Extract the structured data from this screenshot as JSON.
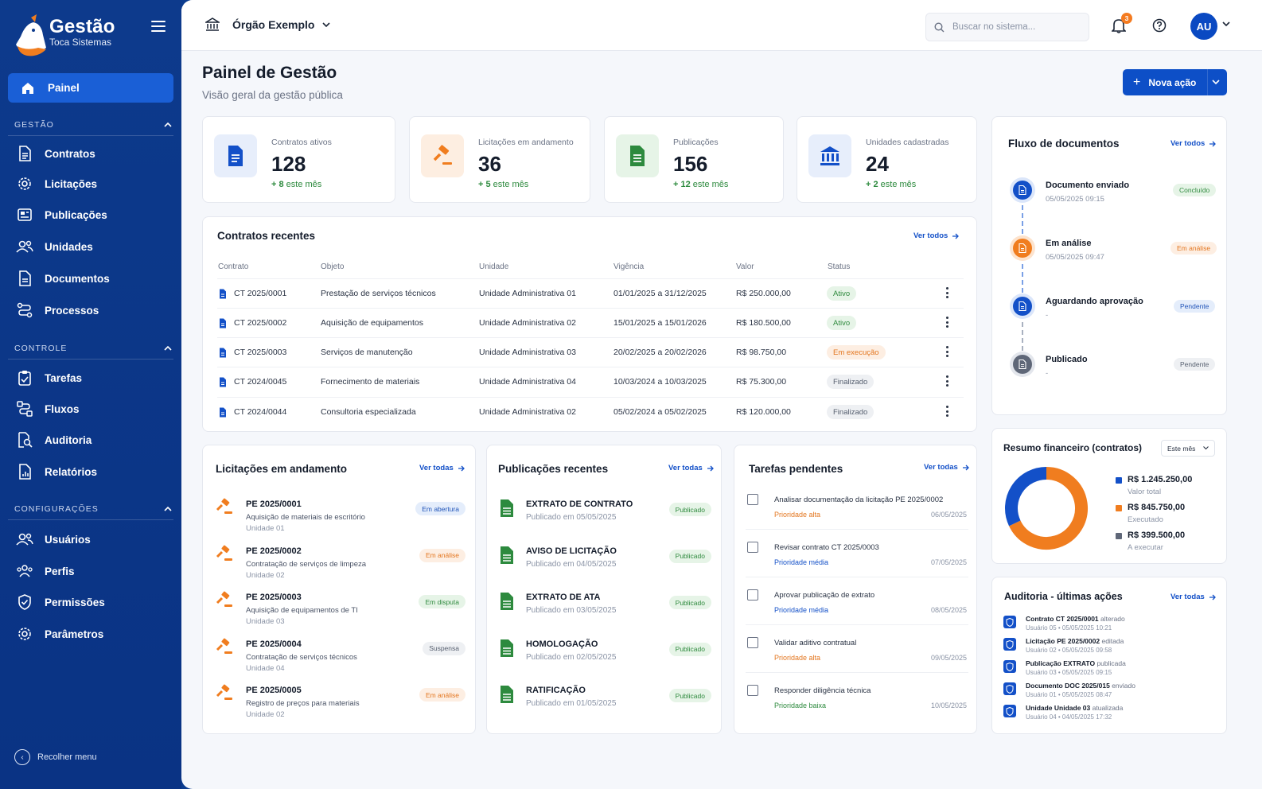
{
  "brand": {
    "title": "Gestão",
    "subtitle": "Toca Sistemas"
  },
  "sidebar": {
    "active": {
      "label": "Painel",
      "icon": "home-icon"
    },
    "sections": [
      {
        "label": "GESTÃO",
        "items": [
          {
            "label": "Contratos",
            "icon": "document-icon"
          },
          {
            "label": "Licitações",
            "icon": "gear-icon"
          },
          {
            "label": "Publicações",
            "icon": "newspaper-icon"
          },
          {
            "label": "Unidades",
            "icon": "users-icon"
          },
          {
            "label": "Documentos",
            "icon": "file-icon"
          },
          {
            "label": "Processos",
            "icon": "process-icon"
          }
        ]
      },
      {
        "label": "CONTROLE",
        "items": [
          {
            "label": "Tarefas",
            "icon": "clipboard-check-icon"
          },
          {
            "label": "Fluxos",
            "icon": "flow-icon"
          },
          {
            "label": "Auditoria",
            "icon": "audit-search-icon"
          },
          {
            "label": "Relatórios",
            "icon": "report-icon"
          }
        ]
      },
      {
        "label": "CONFIGURAÇÕES",
        "items": [
          {
            "label": "Usuários",
            "icon": "users-icon"
          },
          {
            "label": "Perfis",
            "icon": "profiles-icon"
          },
          {
            "label": "Permissões",
            "icon": "shield-check-icon"
          },
          {
            "label": "Parâmetros",
            "icon": "gear-icon"
          }
        ]
      }
    ],
    "collapse_label": "Recolher menu"
  },
  "topbar": {
    "org": "Órgão Exemplo",
    "search_placeholder": "Buscar no sistema...",
    "notifications": "3",
    "avatar": "AU"
  },
  "page": {
    "title": "Painel de Gestão",
    "subtitle": "Visão geral da gestão pública",
    "new_action": "Nova ação"
  },
  "stats": [
    {
      "label": "Contratos ativos",
      "value": "128",
      "delta_num": "+ 8",
      "delta_text": "este mês",
      "icon": "document-icon",
      "color": "#1350c8",
      "bg": "#e7eefb"
    },
    {
      "label": "Licitações em andamento",
      "value": "36",
      "delta_num": "+ 5",
      "delta_text": "este mês",
      "icon": "gavel-icon",
      "color": "#f07d1f",
      "bg": "#fdeee1"
    },
    {
      "label": "Publicações",
      "value": "156",
      "delta_num": "+ 12",
      "delta_text": "este mês",
      "icon": "sheet-icon",
      "color": "#2d8a3e",
      "bg": "#e6f4e7"
    },
    {
      "label": "Unidades cadastradas",
      "value": "24",
      "delta_num": "+ 2",
      "delta_text": "este mês",
      "icon": "bank-icon",
      "color": "#1350c8",
      "bg": "#e7eefb"
    }
  ],
  "contracts": {
    "title": "Contratos recentes",
    "see_all": "Ver todos",
    "columns": [
      "Contrato",
      "Objeto",
      "Unidade",
      "Vigência",
      "Valor",
      "Status"
    ],
    "rows": [
      {
        "id": "CT 2025/0001",
        "object": "Prestação de serviços técnicos",
        "unit": "Unidade Administrativa 01",
        "period": "01/01/2025 a 31/12/2025",
        "value": "R$ 250.000,00",
        "status": "Ativo",
        "tone": "green"
      },
      {
        "id": "CT 2025/0002",
        "object": "Aquisição de equipamentos",
        "unit": "Unidade Administrativa 02",
        "period": "15/01/2025 a 15/01/2026",
        "value": "R$ 180.500,00",
        "status": "Ativo",
        "tone": "green"
      },
      {
        "id": "CT 2025/0003",
        "object": "Serviços de manutenção",
        "unit": "Unidade Administrativa 03",
        "period": "20/02/2025 a 20/02/2026",
        "value": "R$ 98.750,00",
        "status": "Em execução",
        "tone": "orange"
      },
      {
        "id": "CT 2024/0045",
        "object": "Fornecimento de materiais",
        "unit": "Unidade Administrativa 04",
        "period": "10/03/2024 a 10/03/2025",
        "value": "R$ 75.300,00",
        "status": "Finalizado",
        "tone": "gray"
      },
      {
        "id": "CT 2024/0044",
        "object": "Consultoria especializada",
        "unit": "Unidade Administrativa 02",
        "period": "05/02/2024 a 05/02/2025",
        "value": "R$ 120.000,00",
        "status": "Finalizado",
        "tone": "gray"
      }
    ]
  },
  "flow": {
    "title": "Fluxo de documentos",
    "see_all": "Ver todos",
    "steps": [
      {
        "name": "Documento enviado",
        "date": "05/05/2025 09:15",
        "status": "Concluído",
        "tone": "green",
        "color": "#1350c8"
      },
      {
        "name": "Em análise",
        "date": "05/05/2025 09:47",
        "status": "Em análise",
        "tone": "orange",
        "color": "#f07d1f"
      },
      {
        "name": "Aguardando aprovação",
        "date": "-",
        "status": "Pendente",
        "tone": "blue",
        "color": "#1350c8"
      },
      {
        "name": "Publicado",
        "date": "-",
        "status": "Pendente",
        "tone": "gray",
        "color": "#5f6778"
      }
    ]
  },
  "biddings": {
    "title": "Licitações em andamento",
    "see_all": "Ver todas",
    "items": [
      {
        "id": "PE 2025/0001",
        "desc": "Aquisição de materiais de escritório",
        "unit": "Unidade 01",
        "status": "Em abertura",
        "tone": "blue"
      },
      {
        "id": "PE 2025/0002",
        "desc": "Contratação de serviços de limpeza",
        "unit": "Unidade 02",
        "status": "Em análise",
        "tone": "orange"
      },
      {
        "id": "PE 2025/0003",
        "desc": "Aquisição de equipamentos de TI",
        "unit": "Unidade 03",
        "status": "Em disputa",
        "tone": "green"
      },
      {
        "id": "PE 2025/0004",
        "desc": "Contratação de serviços técnicos",
        "unit": "Unidade 04",
        "status": "Suspensa",
        "tone": "gray"
      },
      {
        "id": "PE 2025/0005",
        "desc": "Registro de preços para materiais",
        "unit": "Unidade 02",
        "status": "Em análise",
        "tone": "orange"
      }
    ]
  },
  "publications": {
    "title": "Publicações recentes",
    "see_all": "Ver todas",
    "items": [
      {
        "title": "EXTRATO DE CONTRATO",
        "date": "Publicado em 05/05/2025",
        "status": "Publicado"
      },
      {
        "title": "AVISO DE LICITAÇÃO",
        "date": "Publicado em 04/05/2025",
        "status": "Publicado"
      },
      {
        "title": "EXTRATO DE ATA",
        "date": "Publicado em 03/05/2025",
        "status": "Publicado"
      },
      {
        "title": "HOMOLOGAÇÃO",
        "date": "Publicado em 02/05/2025",
        "status": "Publicado"
      },
      {
        "title": "RATIFICAÇÃO",
        "date": "Publicado em 01/05/2025",
        "status": "Publicado"
      }
    ]
  },
  "tasks": {
    "title": "Tarefas pendentes",
    "see_all": "Ver todas",
    "items": [
      {
        "title": "Analisar documentação da licitação PE 2025/0002",
        "priority": "Prioridade alta",
        "color": "#e3761f",
        "date": "06/05/2025"
      },
      {
        "title": "Revisar contrato CT 2025/0003",
        "priority": "Prioridade média",
        "color": "#1350c8",
        "date": "07/05/2025"
      },
      {
        "title": "Aprovar publicação de extrato",
        "priority": "Prioridade média",
        "color": "#1350c8",
        "date": "08/05/2025"
      },
      {
        "title": "Validar aditivo contratual",
        "priority": "Prioridade alta",
        "color": "#e3761f",
        "date": "09/05/2025"
      },
      {
        "title": "Responder diligência técnica",
        "priority": "Prioridade baixa",
        "color": "#2d8a3e",
        "date": "10/05/2025"
      }
    ]
  },
  "finance": {
    "title": "Resumo financeiro (contratos)",
    "period": "Este mês",
    "items": [
      {
        "value": "R$ 1.245.250,00",
        "label": "Valor total",
        "color": "#1350c8"
      },
      {
        "value": "R$ 845.750,00",
        "label": "Executado",
        "color": "#f07d1f"
      },
      {
        "value": "R$ 399.500,00",
        "label": "A executar",
        "color": "#5f6778"
      }
    ],
    "donut": [
      {
        "amount": 845750,
        "color": "#f07d1f"
      },
      {
        "amount": 399500,
        "color": "#1350c8"
      }
    ]
  },
  "audit": {
    "title": "Auditoria - últimas ações",
    "see_all": "Ver todas",
    "items": [
      {
        "subject": "Contrato CT 2025/0001",
        "action": "alterado",
        "meta": "Usuário 05 • 05/05/2025 10:21"
      },
      {
        "subject": "Licitação PE 2025/0002",
        "action": "editada",
        "meta": "Usuário 02 • 05/05/2025 09:58"
      },
      {
        "subject": "Publicação EXTRATO",
        "action": "publicada",
        "meta": "Usuário 03 • 05/05/2025 09:15"
      },
      {
        "subject": "Documento DOC 2025/015",
        "action": "enviado",
        "meta": "Usuário 01 • 05/05/2025 08:47"
      },
      {
        "subject": "Unidade Unidade 03",
        "action": "atualizada",
        "meta": "Usuário 04 • 04/05/2025 17:32"
      }
    ]
  }
}
